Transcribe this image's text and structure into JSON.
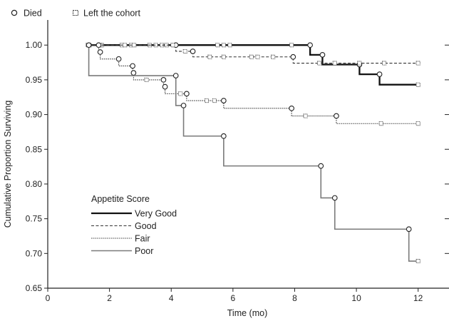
{
  "chart_data": {
    "type": "line",
    "subtype": "kaplan-meier-step",
    "title": "",
    "xlabel": "Time (mo)",
    "ylabel": "Cumulative Proportion Surviving",
    "xlim": [
      0,
      13
    ],
    "ylim": [
      0.65,
      1.03
    ],
    "x_ticks": [
      0,
      2,
      4,
      6,
      8,
      10,
      12
    ],
    "y_ticks": [
      0.65,
      0.7,
      0.75,
      0.8,
      0.85,
      0.9,
      0.95,
      1.0
    ],
    "y_tick_labels": [
      "0.65",
      "0.70",
      "0.75",
      "0.80",
      "0.85",
      "0.90",
      "0.95",
      "1.00"
    ],
    "grid": false,
    "marker_legend": {
      "died": "Died",
      "censored": "Left the cohort"
    },
    "legend_title": "Appetite Score",
    "legend_position": "bottom-left",
    "series": [
      {
        "name": "Very Good",
        "style": "solid-thick",
        "color": "#111111",
        "start": 1.3,
        "end": 12,
        "steps": [
          [
            8.5,
            0.986
          ],
          [
            8.9,
            0.972
          ],
          [
            10.1,
            0.958
          ],
          [
            10.75,
            0.943
          ]
        ],
        "censored": [
          [
            1.35,
            1.0
          ],
          [
            1.75,
            1.0
          ],
          [
            2.4,
            1.0
          ],
          [
            2.7,
            1.0
          ],
          [
            3.3,
            1.0
          ],
          [
            3.5,
            1.0
          ],
          [
            3.7,
            1.0
          ],
          [
            3.85,
            1.0
          ],
          [
            4.1,
            1.0
          ],
          [
            5.5,
            1.0
          ],
          [
            5.7,
            1.0
          ],
          [
            5.9,
            1.0
          ],
          [
            7.9,
            1.0
          ],
          [
            12.0,
            0.943
          ]
        ]
      },
      {
        "name": "Good",
        "style": "dashed",
        "color": "#333333",
        "start": 1.3,
        "end": 12,
        "steps": [
          [
            4.15,
            0.991
          ],
          [
            4.7,
            0.983
          ],
          [
            7.95,
            0.974
          ]
        ],
        "censored": [
          [
            1.3,
            1.0
          ],
          [
            1.7,
            1.0
          ],
          [
            2.5,
            1.0
          ],
          [
            2.8,
            1.0
          ],
          [
            4.05,
            1.0
          ],
          [
            4.45,
            0.991
          ],
          [
            5.25,
            0.983
          ],
          [
            5.7,
            0.983
          ],
          [
            6.6,
            0.983
          ],
          [
            6.8,
            0.983
          ],
          [
            7.3,
            0.983
          ],
          [
            8.8,
            0.974
          ],
          [
            9.3,
            0.974
          ],
          [
            10.1,
            0.974
          ],
          [
            10.9,
            0.974
          ],
          [
            12.0,
            0.974
          ]
        ]
      },
      {
        "name": "Fair",
        "style": "dotted",
        "color": "#444444",
        "start": 1.3,
        "end": 12,
        "steps": [
          [
            1.65,
            0.99
          ],
          [
            1.7,
            0.98
          ],
          [
            2.3,
            0.97
          ],
          [
            2.75,
            0.96
          ],
          [
            2.78,
            0.95
          ],
          [
            3.75,
            0.94
          ],
          [
            3.8,
            0.93
          ],
          [
            4.5,
            0.92
          ],
          [
            5.7,
            0.909
          ],
          [
            7.9,
            0.898
          ],
          [
            9.35,
            0.887
          ]
        ],
        "censored": [
          [
            3.2,
            0.95
          ],
          [
            4.3,
            0.93
          ],
          [
            5.15,
            0.92
          ],
          [
            5.4,
            0.92
          ],
          [
            8.35,
            0.898
          ],
          [
            10.8,
            0.887
          ],
          [
            12.0,
            0.887
          ]
        ]
      },
      {
        "name": "Poor",
        "style": "solid-gray",
        "color": "#7a7a7a",
        "start": 1.3,
        "end": 12,
        "steps": [
          [
            1.33,
            0.956
          ],
          [
            4.15,
            0.913
          ],
          [
            4.4,
            0.869
          ],
          [
            5.7,
            0.826
          ],
          [
            8.85,
            0.78
          ],
          [
            9.3,
            0.735
          ],
          [
            11.7,
            0.689
          ]
        ],
        "censored": [
          [
            12.0,
            0.689
          ]
        ]
      }
    ]
  }
}
